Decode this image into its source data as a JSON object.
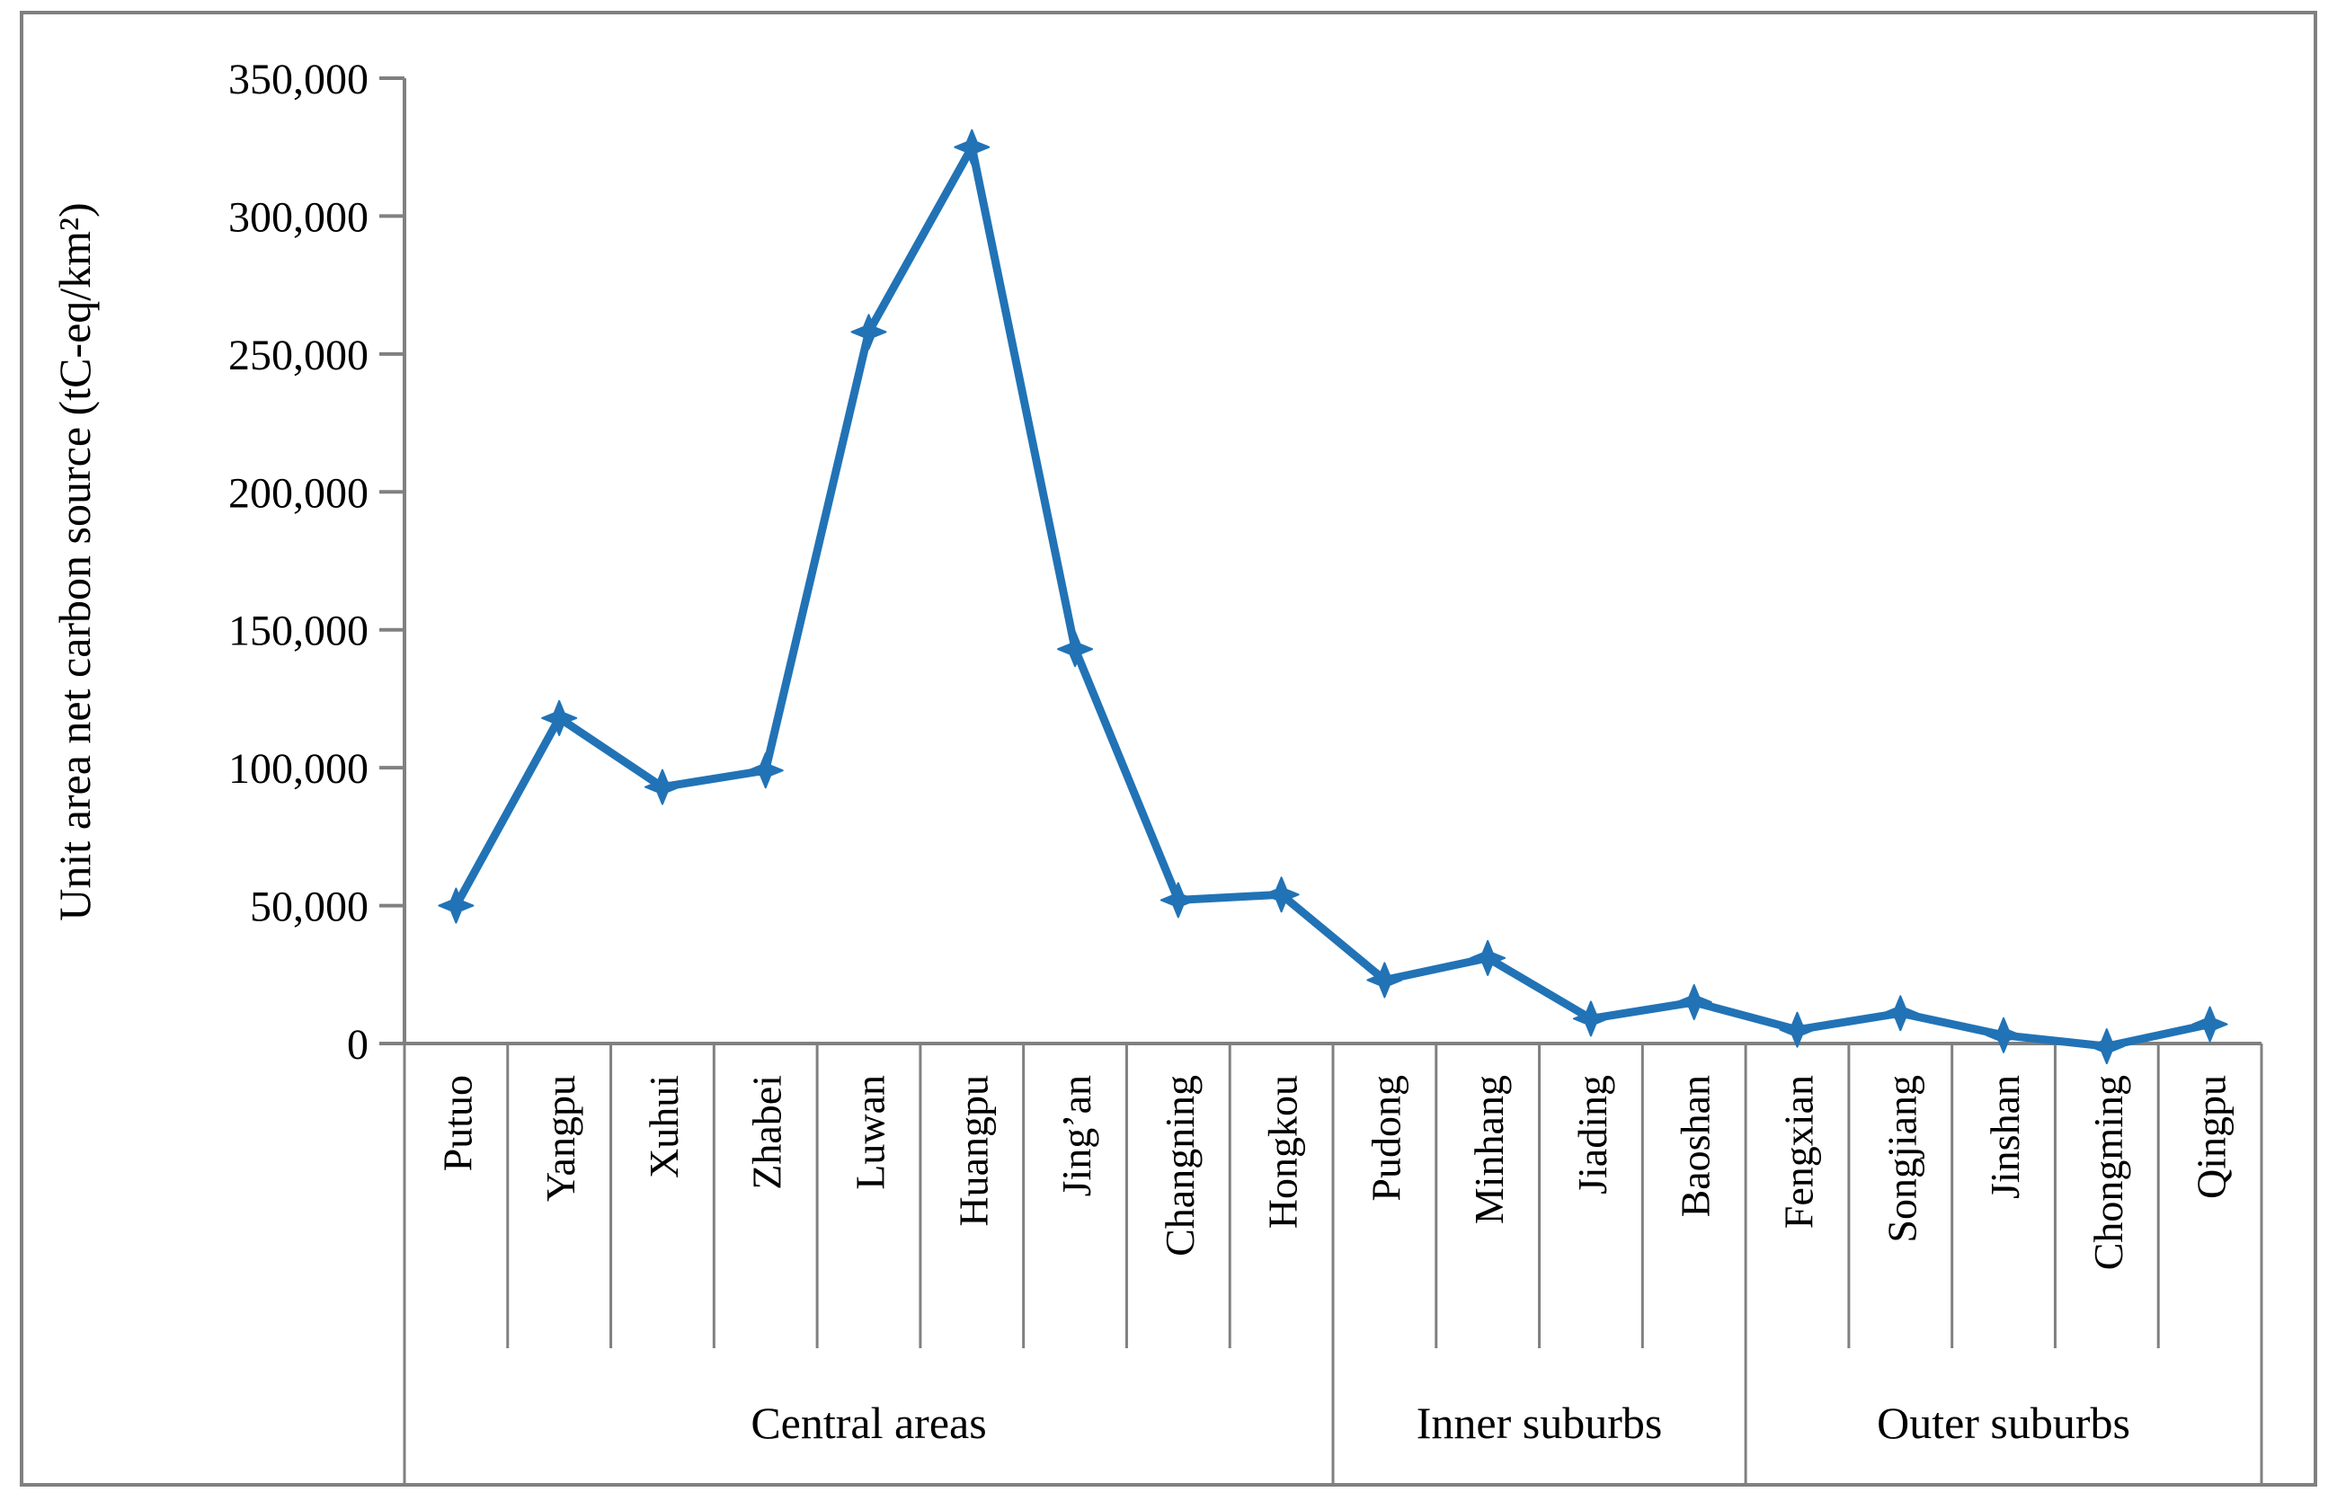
{
  "figure": {
    "background": "#ffffff",
    "border_color": "#808080"
  },
  "chart_data": {
    "type": "line",
    "title": "",
    "xlabel": "",
    "ylabel": "Unit area net carbon source (tC-eq/km²)",
    "categories": [
      "Putuo",
      "Yangpu",
      "Xuhui",
      "Zhabei",
      "Luwan",
      "Huangpu",
      "Jing’an",
      "Changning",
      "Hongkou",
      "Pudong",
      "Minhang",
      "Jiading",
      "Baoshan",
      "Fengxian",
      "Songjiang",
      "Jinshan",
      "Chongming",
      "Qingpu"
    ],
    "values": [
      50000,
      118000,
      93000,
      99000,
      258000,
      325000,
      143000,
      52000,
      54000,
      23000,
      31000,
      9000,
      15000,
      5000,
      11000,
      3000,
      -1000,
      7000
    ],
    "groups": [
      {
        "label": "Central areas",
        "start": 0,
        "end": 8
      },
      {
        "label": "Inner suburbs",
        "start": 9,
        "end": 12
      },
      {
        "label": "Outer suburbs",
        "start": 13,
        "end": 17
      }
    ],
    "ylim": [
      0,
      350000
    ],
    "ytick_interval": 50000,
    "ytick_labels": [
      "0",
      "50,000",
      "100,000",
      "150,000",
      "200,000",
      "250,000",
      "300,000",
      "350,000"
    ],
    "grid": "off",
    "legend": "none",
    "series_color": "#2173b6",
    "axis_color": "#808080",
    "marker": "4-point-star"
  }
}
